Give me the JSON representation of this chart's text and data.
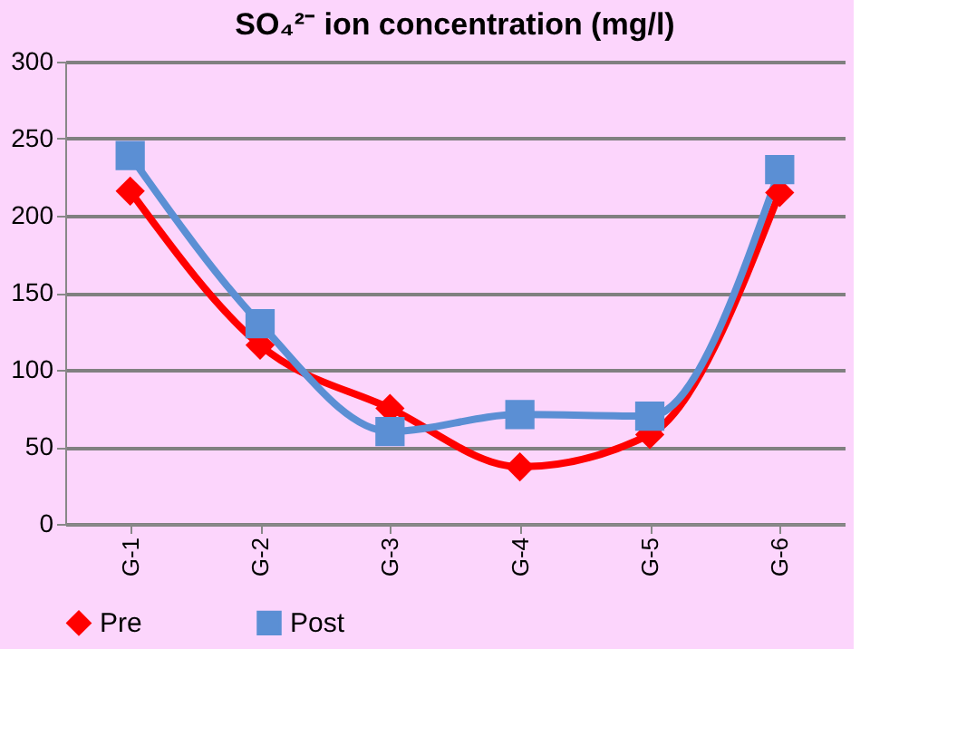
{
  "chart_data": {
    "type": "line",
    "title": "SO₄²⁻ ion concentration (mg/l)",
    "categories": [
      "G-1",
      "G-2",
      "G-3",
      "G-4",
      "G-5",
      "G-6"
    ],
    "series": [
      {
        "name": "Pre",
        "color": "#ff0000",
        "marker": "diamond",
        "line_style": "solid",
        "values": [
          216,
          116,
          75,
          37,
          58,
          215
        ]
      },
      {
        "name": "Post",
        "color": "#5b8fd4",
        "marker": "square",
        "line_style": "solid",
        "values": [
          239,
          130,
          60,
          71,
          70,
          230
        ]
      }
    ],
    "ylim": [
      0,
      300
    ],
    "yticks": [
      0,
      50,
      100,
      150,
      200,
      250,
      300
    ],
    "grid": "y",
    "legend": "bottom"
  }
}
